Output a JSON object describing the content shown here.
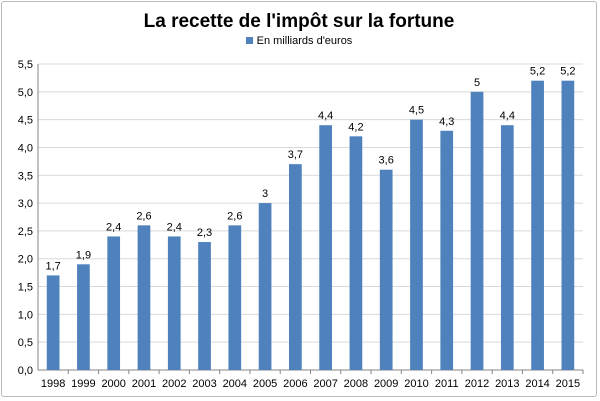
{
  "chart_data": {
    "type": "bar",
    "title": "La recette de l'impôt sur la fortune",
    "legend_position": "top",
    "grid": true,
    "categories": [
      "1998",
      "1999",
      "2000",
      "2001",
      "2002",
      "2003",
      "2004",
      "2005",
      "2006",
      "2007",
      "2008",
      "2009",
      "2010",
      "2011",
      "2012",
      "2013",
      "2014",
      "2015"
    ],
    "series": [
      {
        "name": "En milliards d'euros",
        "color": "#4f81bd",
        "values": [
          1.7,
          1.9,
          2.4,
          2.6,
          2.4,
          2.3,
          2.6,
          3.0,
          3.7,
          4.4,
          4.2,
          3.6,
          4.5,
          4.3,
          5.0,
          4.4,
          5.2,
          5.2
        ],
        "data_labels": [
          "1,7",
          "1,9",
          "2,4",
          "2,6",
          "2,4",
          "2,3",
          "2,6",
          "3",
          "3,7",
          "4,4",
          "4,2",
          "3,6",
          "4,5",
          "4,3",
          "5",
          "4,4",
          "5,2",
          "5,2"
        ]
      }
    ],
    "ylim": [
      0,
      5.5
    ],
    "y_ticks": [
      0,
      0.5,
      1.0,
      1.5,
      2.0,
      2.5,
      3.0,
      3.5,
      4.0,
      4.5,
      5.0,
      5.5
    ],
    "y_tick_labels": [
      "0,0",
      "0,5",
      "1,0",
      "1,5",
      "2,0",
      "2,5",
      "3,0",
      "3,5",
      "4,0",
      "4,5",
      "5,0",
      "5,5"
    ],
    "xlabel": "",
    "ylabel": ""
  }
}
